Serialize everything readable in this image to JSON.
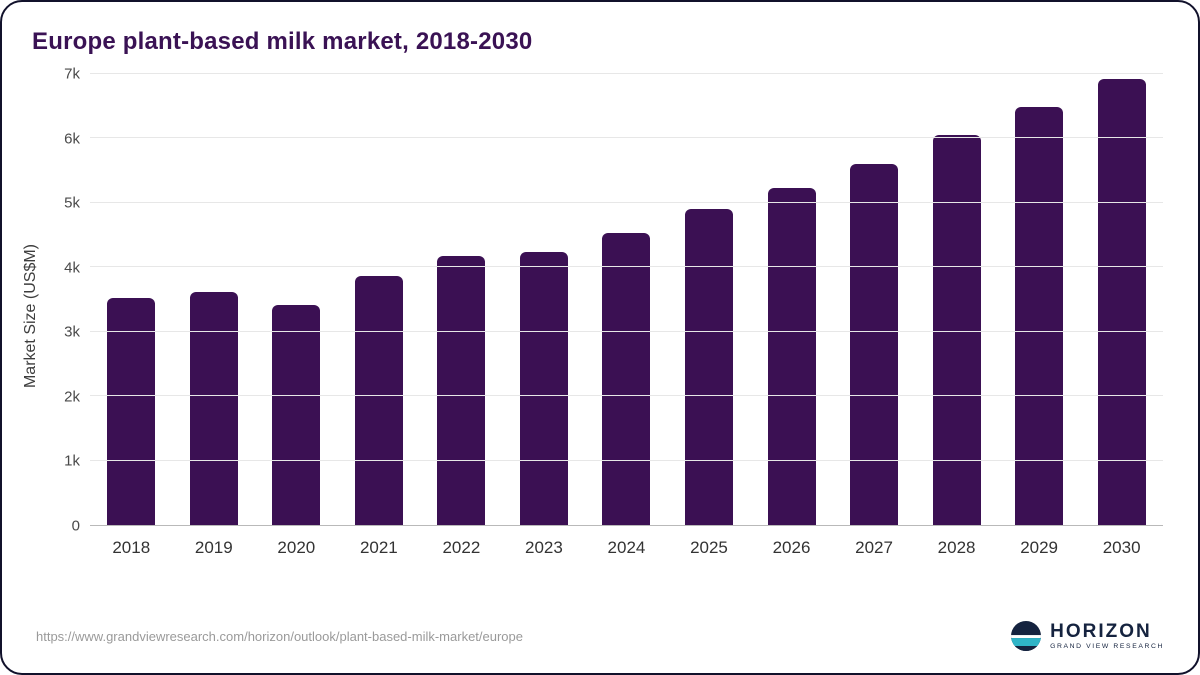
{
  "chart_data": {
    "type": "bar",
    "title": "Europe plant-based milk market, 2018-2030",
    "categories": [
      "2018",
      "2019",
      "2020",
      "2021",
      "2022",
      "2023",
      "2024",
      "2025",
      "2026",
      "2027",
      "2028",
      "2029",
      "2030"
    ],
    "values": [
      3530,
      3620,
      3410,
      3860,
      4170,
      4230,
      4530,
      4910,
      5230,
      5600,
      6050,
      6490,
      6930
    ],
    "xlabel": "",
    "ylabel": "Market Size (US$M)",
    "ylim": [
      0,
      7000
    ],
    "ytick_labels": [
      "0",
      "1k",
      "2k",
      "3k",
      "4k",
      "5k",
      "6k",
      "7k"
    ],
    "grid": true,
    "legend_position": "none",
    "bar_color": "#3b1053"
  },
  "footer": {
    "source_url": "https://www.grandviewresearch.com/horizon/outlook/plant-based-milk-market/europe",
    "logo_title": "HORIZON",
    "logo_subtitle": "GRAND VIEW RESEARCH"
  },
  "colors": {
    "title": "#3a1254",
    "bar": "#3b1053",
    "logo_navy": "#15233f",
    "logo_teal": "#2fb4c7"
  }
}
